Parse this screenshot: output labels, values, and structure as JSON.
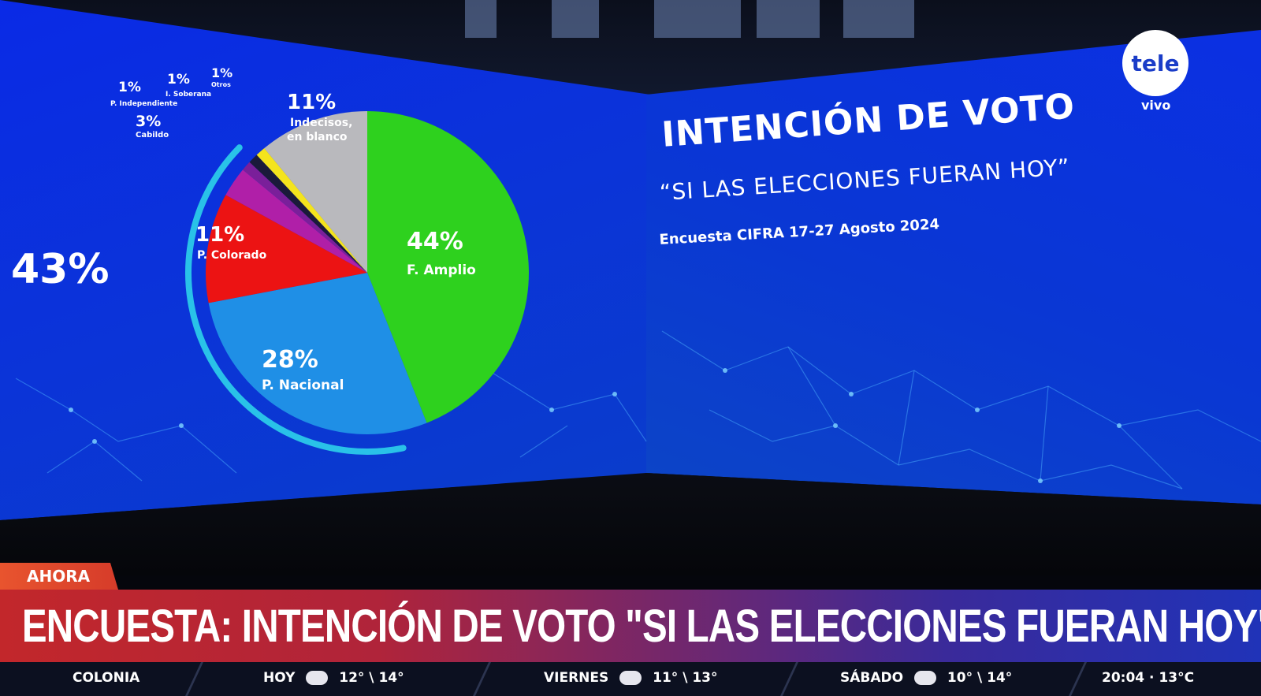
{
  "chart_data": {
    "type": "pie",
    "title": "INTENCIÓN DE VOTO",
    "subtitle": "“SI LAS ELECCIONES FUERAN HOY”",
    "source": "Encuesta CIFRA 17-27 Agosto 2024",
    "slices": [
      {
        "pct": "44%",
        "value": 44,
        "label": "F. Amplio",
        "color": "#2ed11e"
      },
      {
        "pct": "28%",
        "value": 28,
        "label": "P. Nacional",
        "color": "#1f8fe6"
      },
      {
        "pct": "11%",
        "value": 11,
        "label": "P. Colorado",
        "color": "#ec1313"
      },
      {
        "pct": "3%",
        "value": 3,
        "label": "Cabildo",
        "color": "#b01fa8"
      },
      {
        "pct": "1%",
        "value": 1,
        "label": "P. Independiente",
        "color": "#7a1f9a"
      },
      {
        "pct": "1%",
        "value": 1,
        "label": "I. Soberana",
        "color": "#1a1a3a"
      },
      {
        "pct": "1%",
        "value": 1,
        "label": "Otros",
        "color": "#f4e41c"
      },
      {
        "pct": "11%",
        "value": 11,
        "label": "Indecisos, en blanco",
        "label_lines": [
          "Indecisos,",
          "en blanco"
        ],
        "color": "#b9b9bd"
      }
    ],
    "bracket_total": "43%",
    "bracket_color": "#29c2e8"
  },
  "logo": {
    "name": "tele",
    "sub": "vivo"
  },
  "ticker": {
    "tag": "AHORA",
    "headline": "ENCUESTA: INTENCIÓN DE VOTO \"SI LAS ELECCIONES FUERAN HOY\""
  },
  "weather": {
    "location": "COLONIA",
    "days": [
      {
        "day": "HOY",
        "temp": "12° \\ 14°",
        "icon": "partly-cloudy-icon"
      },
      {
        "day": "VIERNES",
        "temp": "11° \\ 13°",
        "icon": "cloud-icon"
      },
      {
        "day": "SÁBADO",
        "temp": "10° \\ 14°",
        "icon": "cloud-icon"
      }
    ],
    "now": "20:04 · 13°C"
  }
}
